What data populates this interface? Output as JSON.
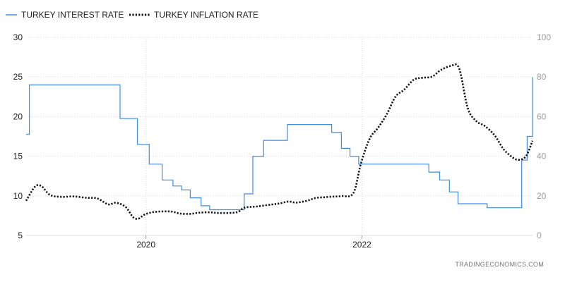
{
  "chart_data": {
    "type": "line",
    "source_label": "TRADINGECONOMICS.COM",
    "legend_placement": "top-left",
    "grid": true,
    "x_range": [
      2018.89,
      2023.58
    ],
    "x_ticks": [
      {
        "value": 2020.0,
        "label": "2020"
      },
      {
        "value": 2022.0,
        "label": "2022"
      }
    ],
    "y_left": {
      "range": [
        5,
        30
      ],
      "ticks": [
        "5",
        "10",
        "15",
        "20",
        "25",
        "30"
      ]
    },
    "y_right": {
      "range": [
        0,
        100
      ],
      "ticks": [
        "0",
        "20",
        "40",
        "60",
        "80",
        "100"
      ]
    },
    "colors": {
      "interest": "#3c8ce6",
      "inflation": "#111111",
      "grid": "#d9d9d9"
    },
    "series": [
      {
        "name": "TURKEY INTEREST RATE",
        "axis": "left",
        "style": "step",
        "points": [
          [
            2018.89,
            17.75
          ],
          [
            2018.92,
            24.0
          ],
          [
            2019.76,
            19.75
          ],
          [
            2019.92,
            16.5
          ],
          [
            2020.03,
            14.0
          ],
          [
            2020.15,
            12.0
          ],
          [
            2020.25,
            11.25
          ],
          [
            2020.33,
            10.75
          ],
          [
            2020.41,
            9.75
          ],
          [
            2020.51,
            8.75
          ],
          [
            2020.59,
            8.25
          ],
          [
            2020.73,
            8.25
          ],
          [
            2020.91,
            10.25
          ],
          [
            2020.99,
            15.0
          ],
          [
            2021.09,
            17.0
          ],
          [
            2021.31,
            19.0
          ],
          [
            2021.72,
            18.0
          ],
          [
            2021.81,
            16.0
          ],
          [
            2021.89,
            15.0
          ],
          [
            2021.97,
            14.0
          ],
          [
            2022.62,
            13.0
          ],
          [
            2022.72,
            12.0
          ],
          [
            2022.81,
            10.5
          ],
          [
            2022.89,
            9.0
          ],
          [
            2023.16,
            8.5
          ],
          [
            2023.48,
            14.5
          ],
          [
            2023.53,
            17.5
          ],
          [
            2023.58,
            25.0
          ]
        ]
      },
      {
        "name": "TURKEY INFLATION RATE",
        "axis": "right",
        "style": "dotted",
        "points": [
          [
            2018.89,
            17.5
          ],
          [
            2018.97,
            24.5
          ],
          [
            2019.03,
            25.0
          ],
          [
            2019.11,
            20.5
          ],
          [
            2019.21,
            19.5
          ],
          [
            2019.33,
            19.7
          ],
          [
            2019.45,
            19.0
          ],
          [
            2019.55,
            18.7
          ],
          [
            2019.65,
            15.7
          ],
          [
            2019.72,
            16.5
          ],
          [
            2019.81,
            14.5
          ],
          [
            2019.88,
            9.3
          ],
          [
            2019.93,
            8.5
          ],
          [
            2019.99,
            10.6
          ],
          [
            2020.08,
            11.9
          ],
          [
            2020.23,
            12.1
          ],
          [
            2020.31,
            11.1
          ],
          [
            2020.41,
            10.9
          ],
          [
            2020.49,
            11.5
          ],
          [
            2020.59,
            11.7
          ],
          [
            2020.68,
            11.3
          ],
          [
            2020.84,
            11.7
          ],
          [
            2020.91,
            14.0
          ],
          [
            2021.02,
            14.6
          ],
          [
            2021.16,
            15.6
          ],
          [
            2021.24,
            16.2
          ],
          [
            2021.32,
            17.1
          ],
          [
            2021.39,
            16.6
          ],
          [
            2021.49,
            17.5
          ],
          [
            2021.57,
            18.9
          ],
          [
            2021.65,
            19.3
          ],
          [
            2021.73,
            19.6
          ],
          [
            2021.81,
            19.9
          ],
          [
            2021.92,
            21.3
          ],
          [
            2021.99,
            36.1
          ],
          [
            2022.07,
            48.7
          ],
          [
            2022.15,
            54.4
          ],
          [
            2022.23,
            61.1
          ],
          [
            2022.31,
            70.0
          ],
          [
            2022.39,
            73.5
          ],
          [
            2022.48,
            78.6
          ],
          [
            2022.56,
            79.6
          ],
          [
            2022.65,
            80.2
          ],
          [
            2022.73,
            83.5
          ],
          [
            2022.82,
            85.5
          ],
          [
            2022.9,
            84.4
          ],
          [
            2022.98,
            64.3
          ],
          [
            2023.06,
            57.7
          ],
          [
            2023.14,
            55.2
          ],
          [
            2023.23,
            50.5
          ],
          [
            2023.31,
            43.7
          ],
          [
            2023.39,
            39.6
          ],
          [
            2023.45,
            38.2
          ],
          [
            2023.52,
            40.0
          ],
          [
            2023.58,
            47.8
          ]
        ]
      }
    ]
  }
}
